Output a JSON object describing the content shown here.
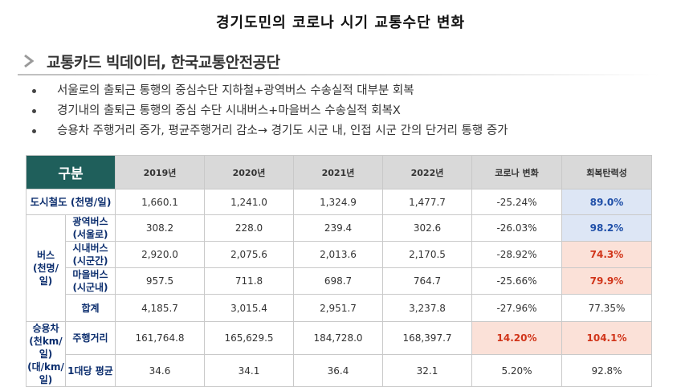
{
  "page": {
    "title": "경기도민의 코로나 시기 교통수단 변화"
  },
  "section": {
    "heading": "교통카드 빅데이터, 한국교통안전공단",
    "icon": "chevron-right-icon"
  },
  "bullets": [
    "서울로의 출퇴근 통행의 중심수단 지하철+광역버스 수송실적 대부분 회복",
    "경기내의 출퇴근 통행의 중심 수단 시내버스+마을버스 수송실적 회복X",
    "승용차 주행거리 증가, 평균주행거리 감소→ 경기도 시군 내, 인접 시군 간의 단거리 통행 증가"
  ],
  "table": {
    "header": {
      "category": "구분",
      "years": [
        "2019년",
        "2020년",
        "2021년",
        "2022년"
      ],
      "change": "코로나 변화",
      "resilience": "회복탄력성"
    },
    "subway": {
      "label": "도시철도 (천명/일)",
      "values": [
        "1,660.1",
        "1,241.0",
        "1,324.9",
        "1,477.7"
      ],
      "change": "-25.24%",
      "resilience": "89.0%"
    },
    "bus": {
      "group_line1": "버스",
      "group_line2": "(천명/일)",
      "rows": [
        {
          "line1": "광역버스",
          "line2": "(서울로)",
          "values": [
            "308.2",
            "228.0",
            "239.4",
            "302.6"
          ],
          "change": "-26.03%",
          "resilience": "98.2%"
        },
        {
          "line1": "시내버스",
          "line2": "(시군간)",
          "values": [
            "2,920.0",
            "2,075.6",
            "2,013.6",
            "2,170.5"
          ],
          "change": "-28.92%",
          "resilience": "74.3%"
        },
        {
          "line1": "마을버스",
          "line2": "(시군내)",
          "values": [
            "957.5",
            "711.8",
            "698.7",
            "764.7"
          ],
          "change": "-25.66%",
          "resilience": "79.9%"
        }
      ],
      "total": {
        "label": "합계",
        "values": [
          "4,185.7",
          "3,015.4",
          "2,951.7",
          "3,237.8"
        ],
        "change": "-27.96%",
        "resilience": "77.35%"
      }
    },
    "car": {
      "group_line1": "승용차",
      "group_line2": "(천km/일)",
      "group_line3": "(대/km/일)",
      "distance": {
        "label": "주행거리",
        "values": [
          "161,764.8",
          "165,629.5",
          "184,728.0",
          "168,397.7"
        ],
        "change": "14.20%",
        "resilience": "104.1%"
      },
      "average": {
        "label": "1대당 평균",
        "values": [
          "34.6",
          "34.1",
          "36.4",
          "32.1"
        ],
        "change": "5.20%",
        "resilience": "92.8%"
      }
    }
  },
  "colors": {
    "header_bg": "#1f5f5b",
    "highlight_blue": "#dde6f5",
    "highlight_red": "#fbe1d8",
    "label_navy": "#0c2e6e"
  }
}
